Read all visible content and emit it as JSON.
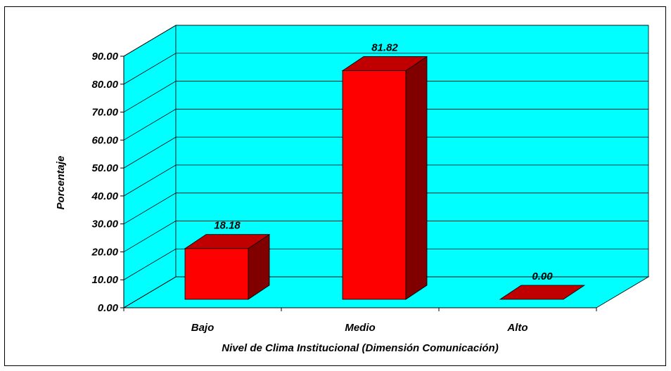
{
  "chart_data": {
    "type": "bar",
    "style": "3d",
    "categories": [
      "Bajo",
      "Medio",
      "Alto"
    ],
    "values": [
      18.18,
      81.82,
      0.0
    ],
    "data_labels": [
      "18.18",
      "81.82",
      "0.00"
    ],
    "xlabel": "Nivel de Clima Institucional (Dimensión Comunicación)",
    "ylabel": "Porcentaje",
    "ylim": [
      0,
      90
    ],
    "yticks": [
      "0.00",
      "10.00",
      "20.00",
      "30.00",
      "40.00",
      "50.00",
      "60.00",
      "70.00",
      "80.00",
      "90.00"
    ],
    "grid": true,
    "legend": "none",
    "colors": {
      "wall": "#00ffff",
      "bar_front": "#ff0000",
      "bar_top": "#c00000",
      "bar_side": "#800000",
      "gridline": "#000000"
    }
  }
}
